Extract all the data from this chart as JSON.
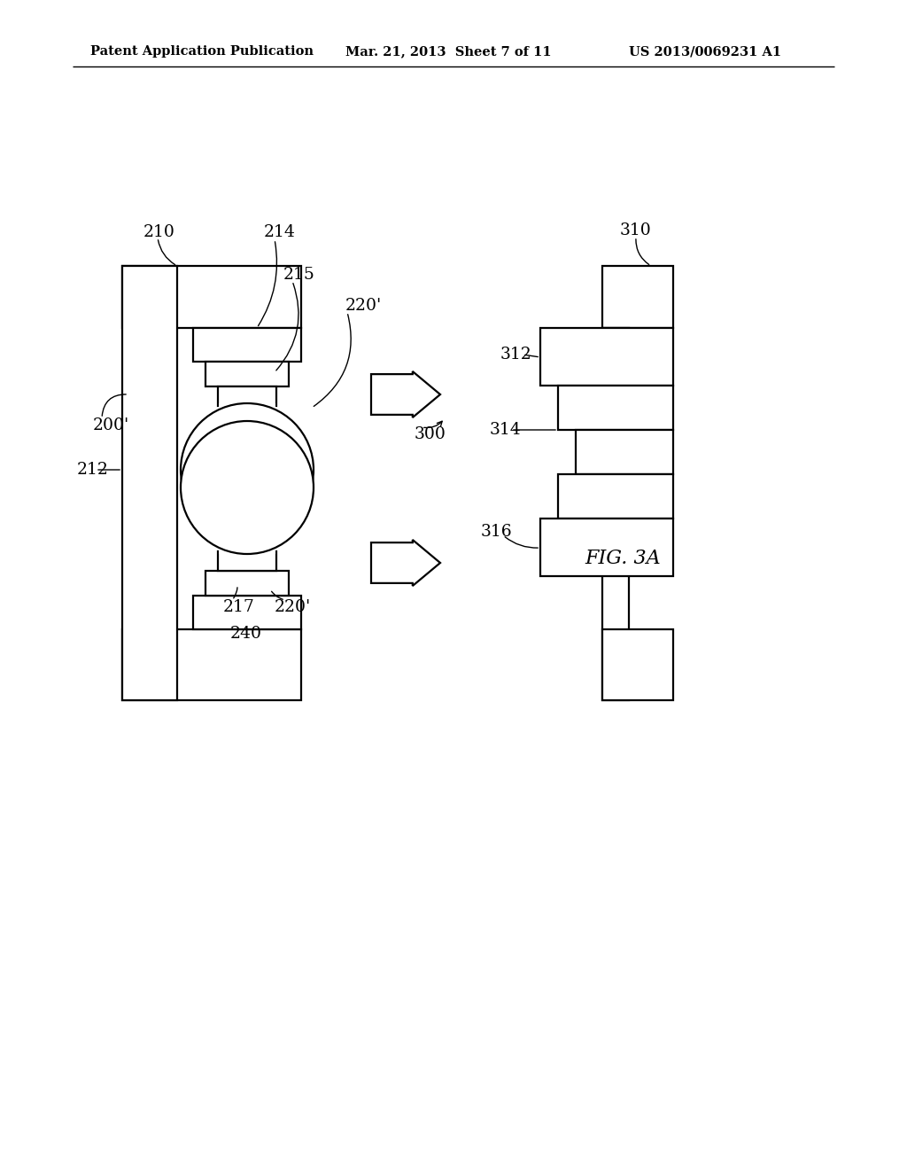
{
  "bg_color": "#ffffff",
  "lc": "#000000",
  "header_left": "Patent Application Publication",
  "header_mid": "Mar. 21, 2013  Sheet 7 of 11",
  "header_right": "US 2013/0069231 A1",
  "fig_label": "FIG. 3A",
  "lw": 1.6,
  "labels": {
    "200p": "200'",
    "210": "210",
    "212": "212",
    "214": "214",
    "215": "215",
    "220p_top": "220'",
    "217": "217",
    "220p_bot": "220'",
    "240": "240",
    "300": "300",
    "310": "310",
    "312": "312",
    "314": "314",
    "316": "316"
  }
}
